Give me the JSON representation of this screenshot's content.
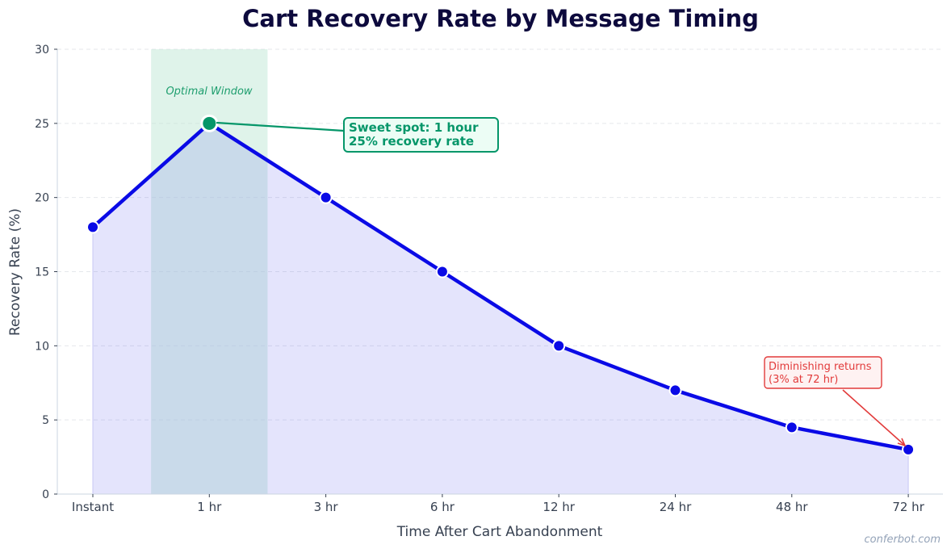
{
  "chart_data": {
    "type": "line",
    "title": "Cart Recovery Rate by Message Timing",
    "xlabel": "Time After Cart Abandonment",
    "ylabel": "Recovery Rate (%)",
    "categories": [
      "Instant",
      "1 hr",
      "3 hr",
      "6 hr",
      "12 hr",
      "24 hr",
      "48 hr",
      "72 hr"
    ],
    "series": [
      {
        "name": "Recovery Rate",
        "values": [
          18,
          25,
          20,
          15,
          10,
          7,
          4.5,
          3
        ],
        "color": "#0a0ae6",
        "fill": "#e3e3fc"
      }
    ],
    "ylim": [
      0,
      30
    ],
    "yticks": [
      0,
      5,
      10,
      15,
      20,
      25,
      30
    ],
    "grid": "horizontal dashed",
    "legend": "none",
    "highlight_band": {
      "label": "Optimal Window",
      "from_index": 0.5,
      "to_index": 1.5,
      "color": "#d1fae5"
    },
    "annotations": [
      {
        "text_line1": "Sweet spot: 1 hour",
        "text_line2": "25% recovery rate",
        "target": "1 hr",
        "value": 25,
        "color": "#059669"
      },
      {
        "text_line1": "Diminishing returns",
        "text_line2": "(3% at 72 hr)",
        "target": "72 hr",
        "value": 3,
        "color": "#e23b3b"
      }
    ],
    "highlight_point": {
      "category": "1 hr",
      "value": 25,
      "color": "#059669"
    }
  },
  "labels": {
    "title": "Cart Recovery Rate by Message Timing",
    "xlabel": "Time After Cart Abandonment",
    "ylabel": "Recovery Rate (%)",
    "band": "Optimal Window",
    "sweet1": "Sweet spot: 1 hour",
    "sweet2": "25% recovery rate",
    "dimin1": "Diminishing returns",
    "dimin2": "(3% at 72 hr)",
    "watermark": "conferbot.com"
  }
}
